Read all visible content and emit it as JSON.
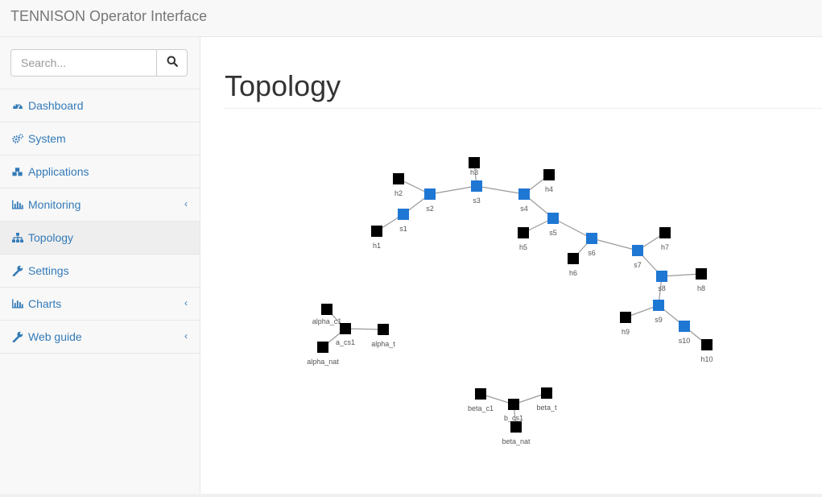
{
  "app": {
    "title": "TENNISON Operator Interface"
  },
  "search": {
    "placeholder": "Search..."
  },
  "sidebar": {
    "items": [
      {
        "label": "Dashboard",
        "icon": "dashboard-icon"
      },
      {
        "label": "System",
        "icon": "cogs-icon"
      },
      {
        "label": "Applications",
        "icon": "cubes-icon"
      },
      {
        "label": "Monitoring",
        "icon": "bar-chart-icon",
        "expandable": true
      },
      {
        "label": "Topology",
        "icon": "sitemap-icon",
        "active": true
      },
      {
        "label": "Settings",
        "icon": "wrench-icon"
      },
      {
        "label": "Charts",
        "icon": "bar-chart-icon",
        "expandable": true
      },
      {
        "label": "Web guide",
        "icon": "wrench-icon",
        "expandable": true
      }
    ]
  },
  "page": {
    "title": "Topology"
  },
  "colors": {
    "switch": "#1f77d4",
    "host": "#000000",
    "link": "#999999",
    "accent": "#337ab7"
  },
  "topology": {
    "nodes": [
      {
        "id": "s1",
        "kind": "switch"
      },
      {
        "id": "s2",
        "kind": "switch"
      },
      {
        "id": "s3",
        "kind": "switch"
      },
      {
        "id": "s4",
        "kind": "switch"
      },
      {
        "id": "s5",
        "kind": "switch"
      },
      {
        "id": "s6",
        "kind": "switch"
      },
      {
        "id": "s7",
        "kind": "switch"
      },
      {
        "id": "s8",
        "kind": "switch"
      },
      {
        "id": "s9",
        "kind": "switch"
      },
      {
        "id": "s10",
        "kind": "switch"
      },
      {
        "id": "h1",
        "kind": "host"
      },
      {
        "id": "h2",
        "kind": "host"
      },
      {
        "id": "h3",
        "kind": "host"
      },
      {
        "id": "h4",
        "kind": "host"
      },
      {
        "id": "h5",
        "kind": "host"
      },
      {
        "id": "h6",
        "kind": "host"
      },
      {
        "id": "h7",
        "kind": "host"
      },
      {
        "id": "h8",
        "kind": "host"
      },
      {
        "id": "h9",
        "kind": "host"
      },
      {
        "id": "h10",
        "kind": "host"
      },
      {
        "id": "alpha_c1",
        "kind": "host"
      },
      {
        "id": "a_cs1",
        "kind": "host"
      },
      {
        "id": "alpha_t",
        "kind": "host"
      },
      {
        "id": "alpha_nat",
        "kind": "host"
      },
      {
        "id": "beta_c1",
        "kind": "host"
      },
      {
        "id": "b_cs1",
        "kind": "host"
      },
      {
        "id": "beta_t",
        "kind": "host"
      },
      {
        "id": "beta_nat",
        "kind": "host"
      }
    ],
    "links": [
      [
        "s1",
        "s2"
      ],
      [
        "s2",
        "s3"
      ],
      [
        "s3",
        "s4"
      ],
      [
        "s4",
        "s5"
      ],
      [
        "s5",
        "s6"
      ],
      [
        "s6",
        "s7"
      ],
      [
        "s7",
        "s8"
      ],
      [
        "s8",
        "s9"
      ],
      [
        "s9",
        "s10"
      ],
      [
        "h1",
        "s1"
      ],
      [
        "h2",
        "s2"
      ],
      [
        "h3",
        "s3"
      ],
      [
        "h4",
        "s4"
      ],
      [
        "h5",
        "s5"
      ],
      [
        "h6",
        "s6"
      ],
      [
        "h7",
        "s7"
      ],
      [
        "h8",
        "s8"
      ],
      [
        "h9",
        "s9"
      ],
      [
        "h10",
        "s10"
      ],
      [
        "alpha_c1",
        "a_cs1"
      ],
      [
        "alpha_t",
        "a_cs1"
      ],
      [
        "alpha_nat",
        "a_cs1"
      ],
      [
        "beta_c1",
        "b_cs1"
      ],
      [
        "beta_t",
        "b_cs1"
      ],
      [
        "beta_nat",
        "b_cs1"
      ]
    ]
  }
}
